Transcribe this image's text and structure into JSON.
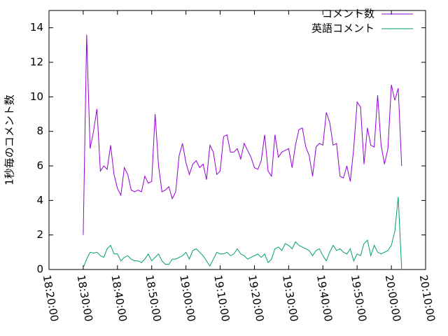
{
  "chart_data": {
    "type": "line",
    "ylabel": "1秒毎のコメント数",
    "legend": "top right",
    "xlim": [
      "18:20:00",
      "20:10:00"
    ],
    "xticks": [
      "18:20:00",
      "18:30:00",
      "18:40:00",
      "18:50:00",
      "19:00:00",
      "19:10:00",
      "19:20:00",
      "19:30:00",
      "19:40:00",
      "19:50:00",
      "20:00:00",
      "20:10:00"
    ],
    "ylim": [
      0,
      15
    ],
    "yticks": [
      0,
      2,
      4,
      6,
      8,
      10,
      12,
      14
    ],
    "x": [
      "18:30:00",
      "18:31:00",
      "18:32:00",
      "18:33:00",
      "18:34:00",
      "18:35:00",
      "18:36:00",
      "18:37:00",
      "18:38:00",
      "18:39:00",
      "18:40:00",
      "18:41:00",
      "18:42:00",
      "18:43:00",
      "18:44:00",
      "18:45:00",
      "18:46:00",
      "18:47:00",
      "18:48:00",
      "18:49:00",
      "18:50:00",
      "18:51:00",
      "18:52:00",
      "18:53:00",
      "18:54:00",
      "18:55:00",
      "18:56:00",
      "18:57:00",
      "18:58:00",
      "18:59:00",
      "19:00:00",
      "19:01:00",
      "19:02:00",
      "19:03:00",
      "19:04:00",
      "19:05:00",
      "19:06:00",
      "19:07:00",
      "19:08:00",
      "19:09:00",
      "19:10:00",
      "19:11:00",
      "19:12:00",
      "19:13:00",
      "19:14:00",
      "19:15:00",
      "19:16:00",
      "19:17:00",
      "19:18:00",
      "19:19:00",
      "19:20:00",
      "19:21:00",
      "19:22:00",
      "19:23:00",
      "19:24:00",
      "19:25:00",
      "19:26:00",
      "19:27:00",
      "19:28:00",
      "19:29:00",
      "19:30:00",
      "19:31:00",
      "19:32:00",
      "19:33:00",
      "19:34:00",
      "19:35:00",
      "19:36:00",
      "19:37:00",
      "19:38:00",
      "19:39:00",
      "19:40:00",
      "19:41:00",
      "19:42:00",
      "19:43:00",
      "19:44:00",
      "19:45:00",
      "19:46:00",
      "19:47:00",
      "19:48:00",
      "19:49:00",
      "19:50:00",
      "19:51:00",
      "19:52:00",
      "19:53:00",
      "19:54:00",
      "19:55:00",
      "19:56:00",
      "19:57:00",
      "19:58:00",
      "19:59:00",
      "20:00:00",
      "20:01:00",
      "20:02:00",
      "20:03:00"
    ],
    "series": [
      {
        "name": "コメント数",
        "color": "#9400d3",
        "values": [
          2.0,
          13.6,
          7.0,
          8.0,
          9.3,
          5.7,
          6.0,
          5.8,
          7.2,
          5.5,
          4.7,
          4.3,
          5.9,
          5.5,
          4.6,
          4.5,
          4.6,
          4.5,
          5.4,
          5.0,
          5.1,
          9.0,
          6.0,
          4.5,
          4.6,
          4.8,
          4.1,
          4.5,
          6.6,
          7.3,
          6.2,
          5.5,
          6.1,
          6.3,
          5.9,
          6.1,
          5.2,
          7.2,
          6.8,
          5.5,
          5.7,
          7.7,
          7.8,
          6.8,
          6.8,
          7.0,
          6.4,
          7.3,
          6.9,
          6.5,
          5.9,
          5.8,
          6.3,
          7.8,
          5.7,
          5.4,
          7.8,
          6.5,
          6.8,
          6.9,
          7.0,
          5.9,
          7.2,
          8.1,
          8.2,
          7.1,
          6.6,
          5.4,
          7.1,
          7.3,
          7.2,
          9.1,
          8.5,
          7.2,
          7.3,
          5.4,
          5.3,
          6.0,
          5.1,
          7.0,
          9.7,
          9.4,
          6.1,
          8.2,
          7.2,
          7.1,
          10.1,
          7.2,
          6.1,
          7.0,
          10.7,
          9.8,
          10.5,
          6.0
        ]
      },
      {
        "name": "英語コメント",
        "color": "#009e73",
        "values": [
          0.1,
          0.6,
          1.0,
          0.95,
          1.0,
          0.8,
          0.7,
          1.2,
          1.4,
          0.9,
          0.9,
          0.5,
          0.7,
          0.8,
          0.6,
          0.5,
          0.5,
          0.4,
          0.6,
          0.9,
          0.5,
          0.7,
          0.9,
          0.5,
          0.3,
          0.3,
          0.6,
          0.6,
          0.7,
          0.8,
          1.0,
          0.6,
          1.1,
          1.2,
          1.0,
          0.8,
          0.5,
          0.2,
          0.6,
          1.0,
          0.9,
          0.9,
          1.0,
          0.8,
          0.9,
          1.2,
          0.9,
          0.8,
          0.6,
          0.7,
          0.8,
          0.9,
          0.7,
          0.9,
          0.4,
          0.6,
          1.2,
          1.3,
          1.1,
          1.5,
          1.4,
          1.2,
          1.6,
          1.4,
          1.3,
          1.2,
          1.1,
          0.8,
          1.1,
          1.2,
          0.8,
          0.5,
          1.0,
          1.4,
          1.1,
          1.2,
          1.0,
          0.9,
          1.2,
          0.5,
          0.9,
          0.8,
          1.5,
          1.7,
          0.8,
          1.4,
          1.0,
          0.9,
          1.0,
          1.1,
          1.4,
          2.2,
          4.2,
          0.0
        ]
      }
    ]
  }
}
